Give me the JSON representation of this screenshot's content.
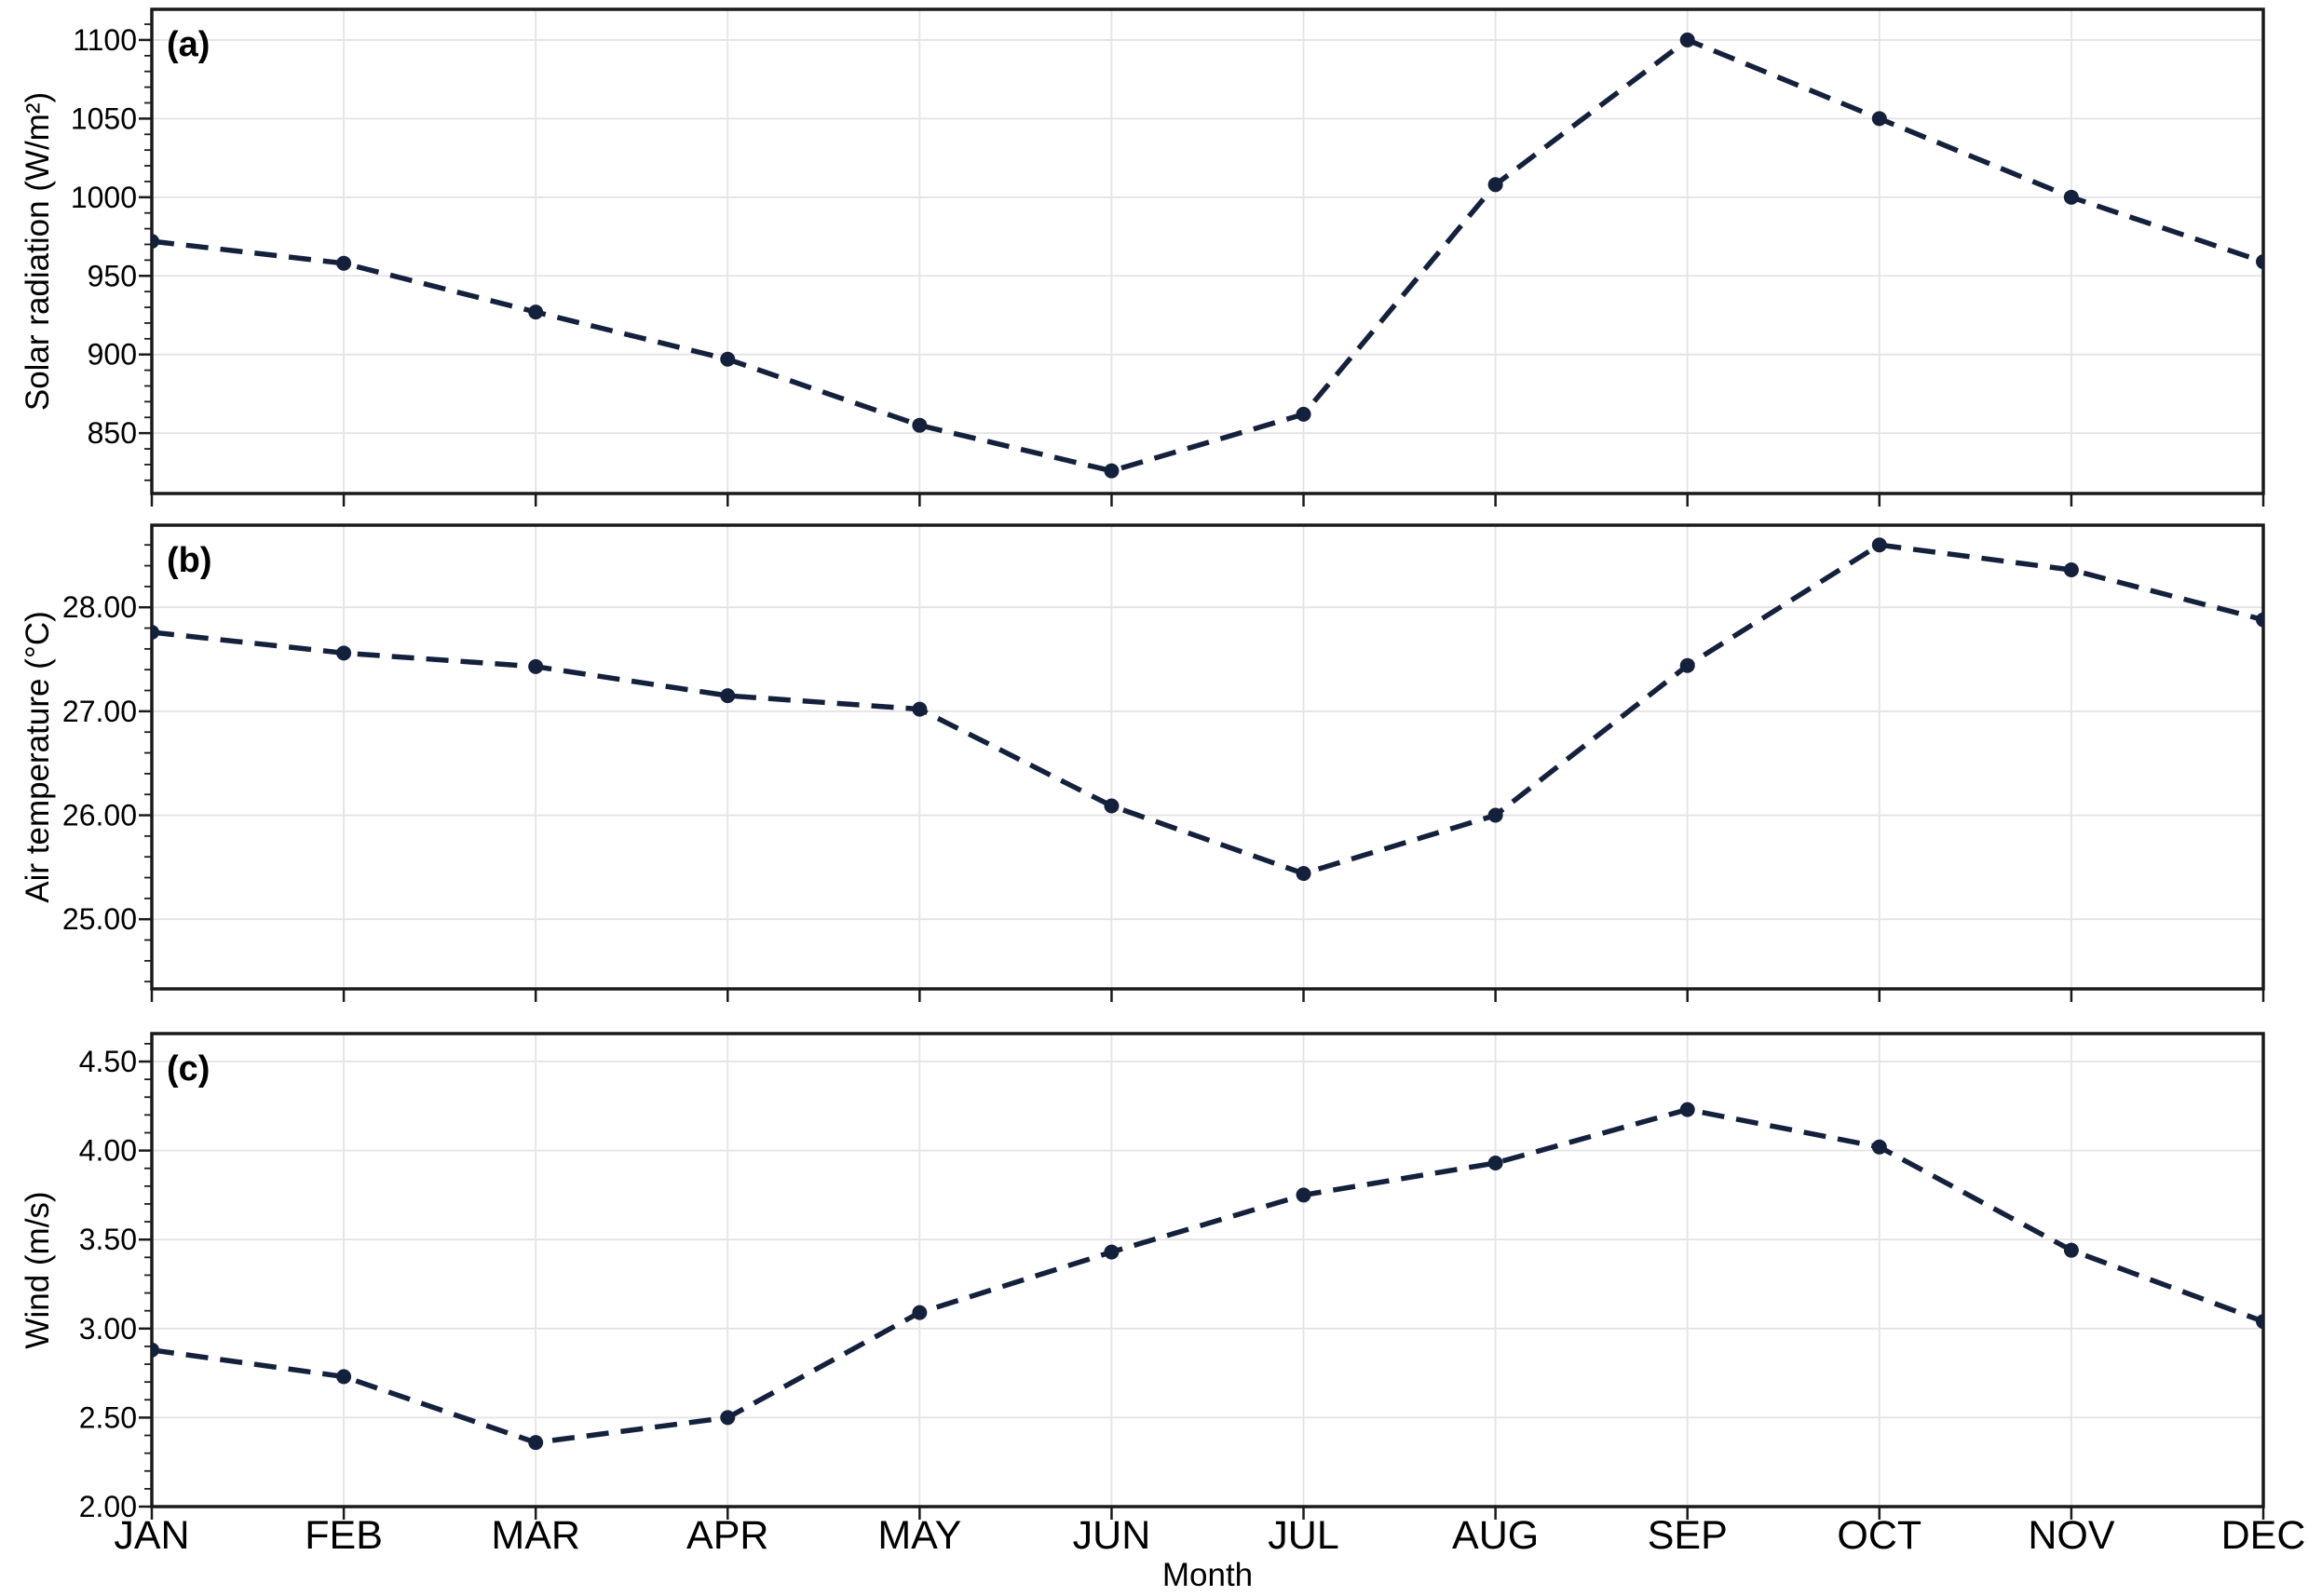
{
  "figure": {
    "background": "#ffffff",
    "line_color": "#14213d",
    "grid_color": "#e3e3e3",
    "axis_color": "#1a1a1a",
    "text_color": "#000000"
  },
  "chart_data": {
    "type": "line",
    "xlabel": "Month",
    "categories": [
      "JAN",
      "FEB",
      "MAR",
      "APR",
      "MAY",
      "JUN",
      "JUL",
      "AUG",
      "SEP",
      "OCT",
      "NOV",
      "DEC"
    ],
    "grid": true,
    "legend": "none",
    "line_style": "dashed",
    "marker": "circle",
    "panels": [
      {
        "panel_label": "(a)",
        "ylabel": "Solar radiation (W/m²)",
        "values": [
          972,
          958,
          927,
          897,
          855,
          826,
          862,
          1008,
          1100,
          1050,
          1000,
          959
        ],
        "ylim": [
          811.6,
          1119.5
        ],
        "yticks": [
          850,
          900,
          950,
          1000,
          1050,
          1100
        ],
        "ytick_labels": [
          "850",
          "900",
          "950",
          "1000",
          "1050",
          "1100"
        ],
        "minor_tick_step": 10
      },
      {
        "panel_label": "(b)",
        "ylabel": "Air temperature (°C)",
        "values": [
          27.76,
          27.56,
          27.43,
          27.15,
          27.02,
          26.09,
          25.44,
          26.0,
          27.44,
          28.6,
          28.36,
          27.88
        ],
        "ylim": [
          24.33,
          28.79
        ],
        "yticks": [
          25,
          26,
          27,
          28
        ],
        "ytick_labels": [
          "25.00",
          "26.00",
          "27.00",
          "28.00"
        ],
        "minor_tick_step": 0.2
      },
      {
        "panel_label": "(c)",
        "ylabel": "Wind (m/s)",
        "values": [
          2.88,
          2.73,
          2.36,
          2.5,
          3.09,
          3.43,
          3.75,
          3.93,
          4.23,
          4.02,
          3.44,
          3.04
        ],
        "ylim": [
          2.0,
          4.657
        ],
        "yticks": [
          2.0,
          2.5,
          3.0,
          3.5,
          4.0,
          4.5
        ],
        "ytick_labels": [
          "2.00",
          "2.50",
          "3.00",
          "3.50",
          "4.00",
          "4.50"
        ],
        "minor_tick_step": 0.1
      }
    ]
  }
}
